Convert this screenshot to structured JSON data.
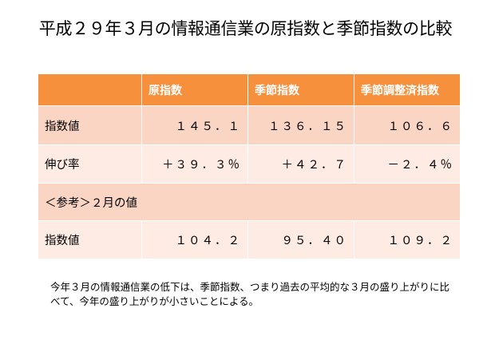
{
  "title": "平成２９年３月の情報通信業の原指数と季節指数の比較",
  "table": {
    "header": [
      "",
      "原指数",
      "季節指数",
      "季節調整済指数"
    ],
    "rows": [
      [
        "指数値",
        "１４５．１",
        "１３６．１５",
        "１０６．６"
      ],
      [
        "伸び率",
        "＋３９．３％",
        "＋４２．７",
        "－２．４％"
      ],
      [
        "＜参考＞２月の値"
      ],
      [
        "指数値",
        "１０４．２",
        "９５．４０",
        "１０９．２"
      ]
    ]
  },
  "note": "今年３月の情報通信業の低下は、季節指数、つまり過去の平均的な３月の盛り上がりに比べて、今年の盛り上がりが小さいことによる。",
  "colors": {
    "header_bg": "#f7903d",
    "row_dark": "#fbd5c4",
    "row_light": "#fdebe4"
  }
}
